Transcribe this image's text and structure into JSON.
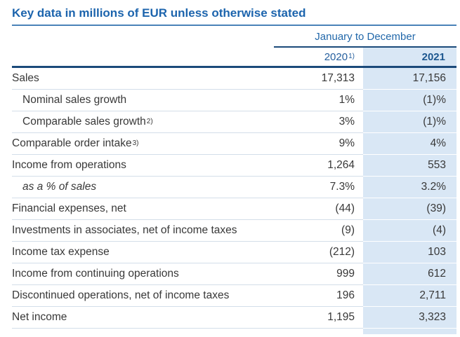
{
  "page": {
    "title": "Key data in millions of EUR unless otherwise stated"
  },
  "table": {
    "period_header": "January to December",
    "columns": {
      "col2020": {
        "label": "2020",
        "sup": "1)"
      },
      "col2021": {
        "label": "2021",
        "sup": ""
      }
    },
    "rows": [
      {
        "label": "Sales",
        "sup": "",
        "indent": false,
        "italic": false,
        "v2020": "17,313",
        "v2021": "17,156"
      },
      {
        "label": "Nominal sales growth",
        "sup": "",
        "indent": true,
        "italic": false,
        "v2020": "1%",
        "v2021": "(1)%"
      },
      {
        "label": "Comparable sales growth",
        "sup": "2)",
        "indent": true,
        "italic": false,
        "v2020": "3%",
        "v2021": "(1)%"
      },
      {
        "label": "Comparable order intake",
        "sup": "3)",
        "indent": false,
        "italic": false,
        "v2020": "9%",
        "v2021": "4%"
      },
      {
        "label": "Income from operations",
        "sup": "",
        "indent": false,
        "italic": false,
        "v2020": "1,264",
        "v2021": "553"
      },
      {
        "label": "as a % of sales",
        "sup": "",
        "indent": true,
        "italic": true,
        "v2020": "7.3%",
        "v2021": "3.2%"
      },
      {
        "label": "Financial expenses, net",
        "sup": "",
        "indent": false,
        "italic": false,
        "v2020": "(44)",
        "v2021": "(39)"
      },
      {
        "label": "Investments in associates, net of income taxes",
        "sup": "",
        "indent": false,
        "italic": false,
        "v2020": "(9)",
        "v2021": "(4)"
      },
      {
        "label": "Income tax expense",
        "sup": "",
        "indent": false,
        "italic": false,
        "v2020": "(212)",
        "v2021": "103"
      },
      {
        "label": "Income from continuing operations",
        "sup": "",
        "indent": false,
        "italic": false,
        "v2020": "999",
        "v2021": "612"
      },
      {
        "label": "Discontinued operations, net of income taxes",
        "sup": "",
        "indent": false,
        "italic": false,
        "v2020": "196",
        "v2021": "2,711"
      },
      {
        "label": "Net income",
        "sup": "",
        "indent": false,
        "italic": false,
        "v2020": "1,195",
        "v2021": "3,323"
      }
    ],
    "colors": {
      "title_blue": "#1c64ad",
      "header_blue": "#2268aa",
      "rule_navy": "#1b4a7a",
      "highlight_column_fill": "#d9e7f5",
      "row_divider": "#d3dee9",
      "body_text": "#383838"
    }
  }
}
